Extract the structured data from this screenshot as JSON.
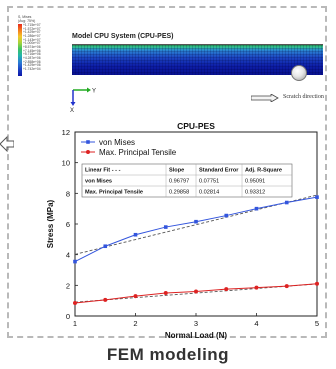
{
  "fem": {
    "legend_header": "S, Mises\n(Avg: 75%)",
    "legend_values": [
      "+1.715e+07",
      "+1.572e+07",
      "+1.429e+07",
      "+1.286e+07",
      "+1.143e+07",
      "+1.000e+07",
      "+8.574e+06",
      "+7.145e+06",
      "+5.716e+06",
      "+4.287e+06",
      "+2.858e+06",
      "+1.429e+06",
      "+1.742e+04"
    ],
    "model_title": "Model CPU System (CPU-PES)",
    "scratch_label": "Scratch direction",
    "axis_y": "Y",
    "axis_x": "X"
  },
  "caption": "FEM modeling",
  "chart_data": {
    "type": "line",
    "title": "CPU-PES",
    "xlabel": "Normal Load (N)",
    "ylabel": "Stress (MPa)",
    "xlim": [
      1,
      5
    ],
    "ylim": [
      0,
      12
    ],
    "x_ticks": [
      1,
      2,
      3,
      4,
      5
    ],
    "y_ticks": [
      0,
      2,
      4,
      6,
      8,
      10,
      12
    ],
    "legend_position": "top-left",
    "series": [
      {
        "name": "von Mises",
        "marker": "square",
        "color": "#3355dd",
        "x": [
          1,
          1.5,
          2,
          2.5,
          3,
          3.5,
          4,
          4.5,
          5
        ],
        "y": [
          3.55,
          4.55,
          5.3,
          5.8,
          6.15,
          6.55,
          7.0,
          7.4,
          7.75
        ],
        "fit": {
          "slope": 0.96797,
          "intercept": 3.05
        }
      },
      {
        "name": "Max. Principal Tensile",
        "marker": "circle",
        "color": "#dd2222",
        "x": [
          1,
          1.5,
          2,
          2.5,
          3,
          3.5,
          4,
          4.5,
          5
        ],
        "y": [
          0.85,
          1.05,
          1.3,
          1.5,
          1.6,
          1.75,
          1.85,
          1.95,
          2.1
        ],
        "fit": {
          "slope": 0.29858,
          "intercept": 0.6
        }
      }
    ],
    "fit_table": {
      "headers": [
        "Linear Fit - - -",
        "Slope",
        "Standard Error",
        "Adj. R-Square"
      ],
      "rows": [
        [
          "von Mises",
          "0.96797",
          "0.07751",
          "0.95091"
        ],
        [
          "Max. Principal Tensile",
          "0.29858",
          "0.02814",
          "0.93312"
        ]
      ]
    }
  }
}
